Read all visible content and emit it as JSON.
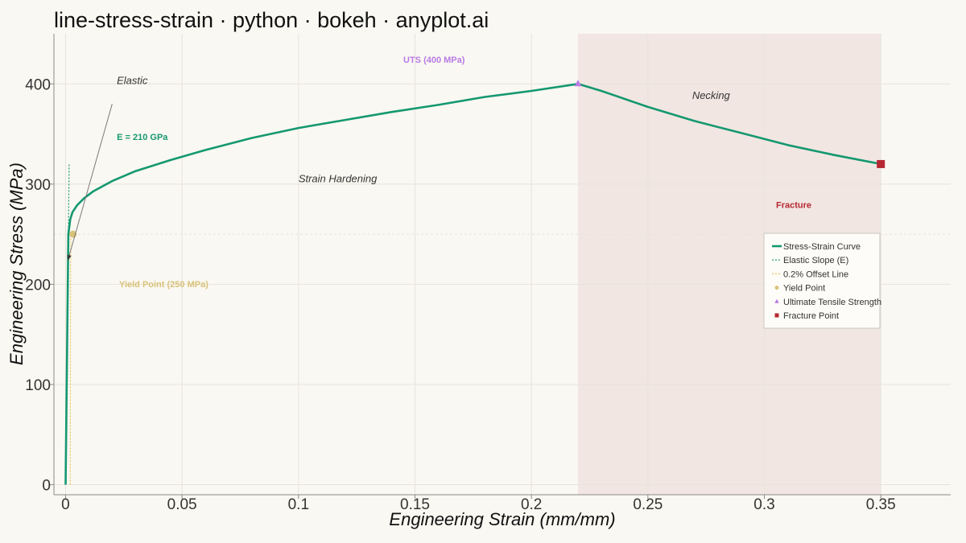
{
  "colors": {
    "background": "#faf8f2",
    "curve": "#149870",
    "elastic": "#149870",
    "offset": "#e3c55c",
    "yield": "#d9c27a",
    "uts": "#b87be6",
    "fracture": "#b52832",
    "necking_region": "#f2e6e2",
    "grid": "#e6e3dc"
  },
  "chart_data": {
    "type": "line",
    "title": "line-stress-strain · python · bokeh · anyplot.ai",
    "xlabel": "Engineering Strain (mm/mm)",
    "ylabel": "Engineering Stress (MPa)",
    "xlim": [
      -0.005,
      0.38
    ],
    "ylim": [
      -10,
      450
    ],
    "x_ticks": [
      0,
      0.05,
      0.1,
      0.15,
      0.2,
      0.25,
      0.3,
      0.35
    ],
    "x_tick_labels": [
      "0",
      "0.05",
      "0.1",
      "0.15",
      "0.2",
      "0.25",
      "0.3",
      "0.35"
    ],
    "y_ticks": [
      0,
      100,
      200,
      300,
      400
    ],
    "y_tick_labels": [
      "0",
      "100",
      "200",
      "300",
      "400"
    ],
    "grid": true,
    "legend_position": "right-center",
    "series": [
      {
        "name": "Stress-Strain Curve",
        "style": "solid",
        "x": [
          0,
          0.0012,
          0.002,
          0.003,
          0.005,
          0.008,
          0.012,
          0.02,
          0.03,
          0.045,
          0.06,
          0.08,
          0.1,
          0.12,
          0.14,
          0.16,
          0.18,
          0.2,
          0.22,
          0.23,
          0.25,
          0.27,
          0.29,
          0.31,
          0.33,
          0.35
        ],
        "y": [
          0,
          250,
          265,
          272,
          279,
          286,
          293,
          303,
          313,
          324,
          334,
          346,
          356,
          364,
          372,
          379,
          387,
          393,
          400,
          393,
          377,
          363,
          351,
          339,
          329,
          320
        ]
      },
      {
        "name": "Elastic Slope (E)",
        "style": "dotted",
        "x": [
          0,
          0.00152
        ],
        "y": [
          0,
          320
        ]
      },
      {
        "name": "0.2% Offset Line",
        "style": "dotted",
        "x": [
          0.002,
          0.0022
        ],
        "y": [
          0,
          250
        ]
      }
    ],
    "points": [
      {
        "name": "Yield Point",
        "marker": "circle",
        "x": 0.0032,
        "y": 250
      },
      {
        "name": "Ultimate Tensile Strength",
        "marker": "triangle",
        "x": 0.22,
        "y": 400
      },
      {
        "name": "Fracture Point",
        "marker": "square",
        "x": 0.35,
        "y": 320
      }
    ],
    "shaded_region": {
      "label": "Necking",
      "x0": 0.22,
      "x1": 0.35
    },
    "annotations": [
      {
        "key": "elastic",
        "text": "Elastic",
        "x": 0.022,
        "y": 400,
        "style": "italic"
      },
      {
        "key": "modulus",
        "text": "E = 210 GPa",
        "x": 0.022,
        "y": 344,
        "style": "bold",
        "color": "#149870"
      },
      {
        "key": "hardening",
        "text": "Strain Hardening",
        "x": 0.1,
        "y": 302,
        "style": "italic"
      },
      {
        "key": "necking",
        "text": "Necking",
        "x": 0.269,
        "y": 385,
        "style": "italic"
      },
      {
        "key": "uts",
        "text": "UTS (400 MPa)",
        "x": 0.145,
        "y": 421,
        "style": "bold",
        "color": "#b87be6"
      },
      {
        "key": "yield",
        "text": "Yield Point (250 MPa)",
        "x": 0.023,
        "y": 197,
        "style": "bold",
        "color": "#d9c27a"
      },
      {
        "key": "fracture",
        "text": "Fracture",
        "x": 0.305,
        "y": 276,
        "style": "bold",
        "color": "#b52832"
      }
    ],
    "arrow": {
      "from": [
        0.02,
        380
      ],
      "to": [
        0.001,
        224
      ]
    }
  },
  "legend": {
    "items": [
      {
        "label": "Stress-Strain Curve",
        "kind": "line-solid",
        "color": "#149870"
      },
      {
        "label": "Elastic Slope (E)",
        "kind": "line-dotted",
        "color": "#149870"
      },
      {
        "label": "0.2% Offset Line",
        "kind": "line-dotted",
        "color": "#e3c55c"
      },
      {
        "label": "Yield Point",
        "kind": "circle",
        "color": "#d9c27a"
      },
      {
        "label": "Ultimate Tensile Strength",
        "kind": "triangle",
        "color": "#b87be6"
      },
      {
        "label": "Fracture Point",
        "kind": "square",
        "color": "#b52832"
      }
    ]
  }
}
